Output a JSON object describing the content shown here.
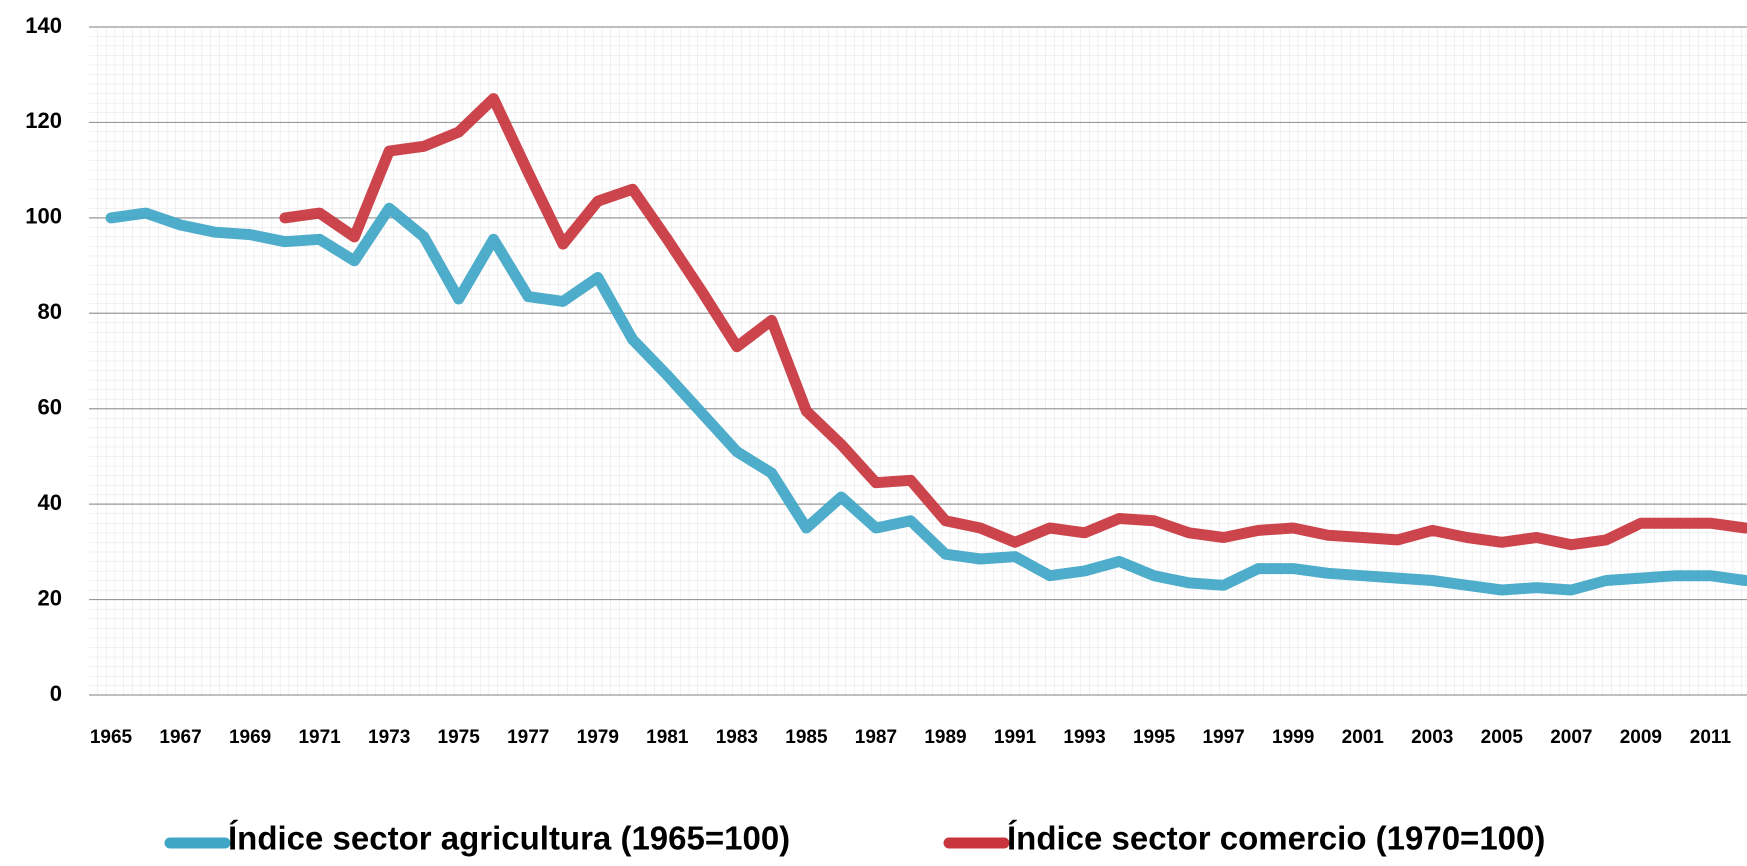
{
  "chart_data": {
    "type": "line",
    "categories": [
      "1965",
      null,
      "1967",
      null,
      "1969",
      null,
      "1971",
      null,
      "1973",
      null,
      "1975",
      null,
      "1977",
      null,
      "1979",
      null,
      "1981",
      null,
      "1983",
      null,
      "1985",
      null,
      "1987",
      null,
      "1989",
      null,
      "1991",
      null,
      "1993",
      null,
      "1995",
      null,
      "1997",
      null,
      "1999",
      null,
      "2001",
      null,
      "2003",
      null,
      "2005",
      null,
      "2007",
      null,
      "2009",
      null,
      "2011",
      null
    ],
    "series": [
      {
        "name": "Índice sector agricultura (1965=100)",
        "color": "#3fa6c6",
        "values": [
          100,
          101,
          98.5,
          97,
          96.5,
          95,
          95.5,
          91,
          102,
          96,
          83,
          95.5,
          83.5,
          82.5,
          87.5,
          74.5,
          67,
          59,
          51,
          46.5,
          35,
          41.5,
          35,
          36.5,
          29.5,
          28.5,
          29,
          25,
          26,
          28,
          25,
          23.5,
          23,
          26.5,
          26.5,
          25.5,
          25,
          24.5,
          24,
          23,
          22,
          22.5,
          22,
          24,
          24.5,
          25,
          25,
          24
        ]
      },
      {
        "name": "Índice sector comercio (1970=100)",
        "color": "#c9353d",
        "values": [
          null,
          null,
          null,
          null,
          null,
          100,
          101,
          96,
          114,
          115,
          118,
          125,
          109.5,
          94.5,
          103.5,
          106,
          95.5,
          84.5,
          73,
          78.5,
          59.5,
          52.5,
          44.5,
          45,
          36.5,
          35,
          32,
          35,
          34,
          37,
          36.5,
          34,
          33,
          34.5,
          35,
          33.5,
          33,
          32.5,
          34.5,
          33,
          32,
          33,
          31.5,
          32.5,
          36,
          36,
          36,
          35
        ]
      }
    ],
    "ylim": [
      0,
      140
    ],
    "yticks": [
      0,
      20,
      40,
      60,
      80,
      100,
      120,
      140
    ],
    "grid": true
  }
}
